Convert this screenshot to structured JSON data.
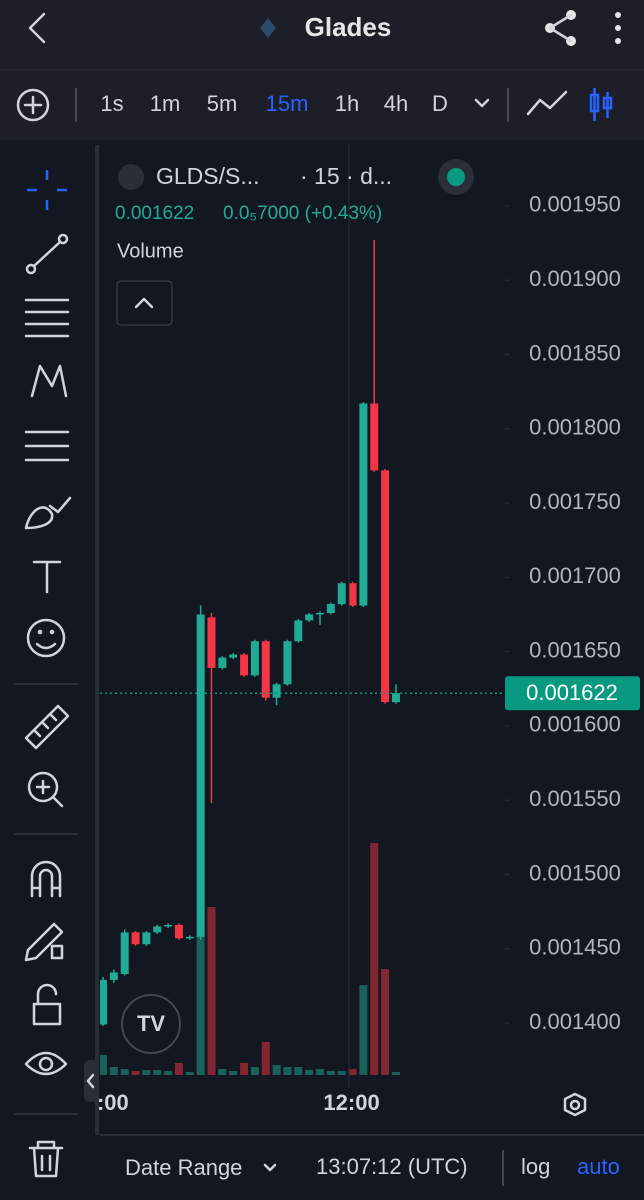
{
  "header": {
    "title": "Glades"
  },
  "toolbar": {
    "intervals": [
      "1s",
      "1m",
      "5m",
      "15m",
      "1h",
      "4h",
      "D"
    ]
  },
  "chart_data": {
    "type": "candlestick",
    "symbol": "GLDS/S...",
    "interval_info": "· 15 · d...",
    "change_text": "0.0₅7000 (+0.43%)",
    "volume_label": "Volume",
    "categories": [
      null,
      ":00",
      null,
      null,
      null,
      null,
      null,
      null,
      null,
      null,
      null,
      null,
      null,
      null,
      null,
      null,
      null,
      null,
      null,
      null,
      null,
      null,
      null,
      "12:00",
      null,
      null,
      null,
      null
    ],
    "open": [
      0.001399,
      0.001429,
      0.001433,
      0.001461,
      0.001453,
      0.001461,
      0.001465,
      0.001466,
      0.001457,
      0.001458,
      0.001673,
      0.001639,
      0.001646,
      0.001648,
      0.001634,
      0.001657,
      0.001619,
      0.001628,
      0.001657,
      0.001671,
      0.001675,
      0.001676,
      0.001682,
      0.001696,
      0.001681,
      0.001817,
      0.001772,
      0.001616
    ],
    "high": [
      0.001431,
      0.001436,
      0.001463,
      0.001462,
      0.001462,
      0.001466,
      0.001467,
      0.001467,
      0.001459,
      0.001681,
      0.001676,
      0.001647,
      0.001649,
      0.001649,
      0.001658,
      0.001658,
      0.001629,
      0.001658,
      0.001672,
      0.001676,
      0.001677,
      0.001683,
      0.001697,
      0.001697,
      0.001818,
      0.001927,
      0.001773,
      0.001628
    ],
    "low": [
      0.001398,
      0.001427,
      0.001432,
      0.001452,
      0.001452,
      0.00146,
      0.001464,
      0.001456,
      0.001456,
      0.001456,
      0.001548,
      0.001638,
      0.001645,
      0.001633,
      0.001633,
      0.001617,
      0.001614,
      0.001627,
      0.001656,
      0.00167,
      0.001668,
      0.001675,
      0.001681,
      0.00168,
      0.00168,
      0.001771,
      0.001615,
      0.001615
    ],
    "close": [
      0.001429,
      0.001434,
      0.001461,
      0.001453,
      0.001461,
      0.001465,
      0.001466,
      0.001457,
      0.001458,
      0.001675,
      0.001639,
      0.001646,
      0.001648,
      0.001634,
      0.001657,
      0.001619,
      0.001628,
      0.001657,
      0.001671,
      0.001675,
      0.001676,
      0.001682,
      0.001696,
      0.001681,
      0.001817,
      0.001772,
      0.001616,
      0.001622
    ],
    "volume": [
      20,
      8,
      6,
      4,
      5,
      5,
      4,
      12,
      3,
      140,
      168,
      6,
      4,
      12,
      8,
      33,
      10,
      8,
      8,
      5,
      6,
      4,
      4,
      6,
      90,
      232,
      106,
      3
    ],
    "ylim": [
      0.001365,
      0.001991
    ],
    "yticks": [
      {
        "value": 0.0014,
        "label": "0.001400"
      },
      {
        "value": 0.00145,
        "label": "0.001450"
      },
      {
        "value": 0.0015,
        "label": "0.001500"
      },
      {
        "value": 0.00155,
        "label": "0.001550"
      },
      {
        "value": 0.0016,
        "label": "0.001600"
      },
      {
        "value": 0.00165,
        "label": "0.001650"
      },
      {
        "value": 0.0017,
        "label": "0.001700"
      },
      {
        "value": 0.00175,
        "label": "0.001750"
      },
      {
        "value": 0.0018,
        "label": "0.001800"
      },
      {
        "value": 0.00185,
        "label": "0.001850"
      },
      {
        "value": 0.0019,
        "label": "0.001900"
      },
      {
        "value": 0.00195,
        "label": "0.001950"
      }
    ],
    "last_price": 0.001622,
    "up_color": "#22ab94",
    "down_color": "#f23645"
  },
  "bottom_bar": {
    "date_range": "Date Range",
    "time": "13:07:12 (UTC)",
    "log": "log",
    "auto": "auto"
  }
}
